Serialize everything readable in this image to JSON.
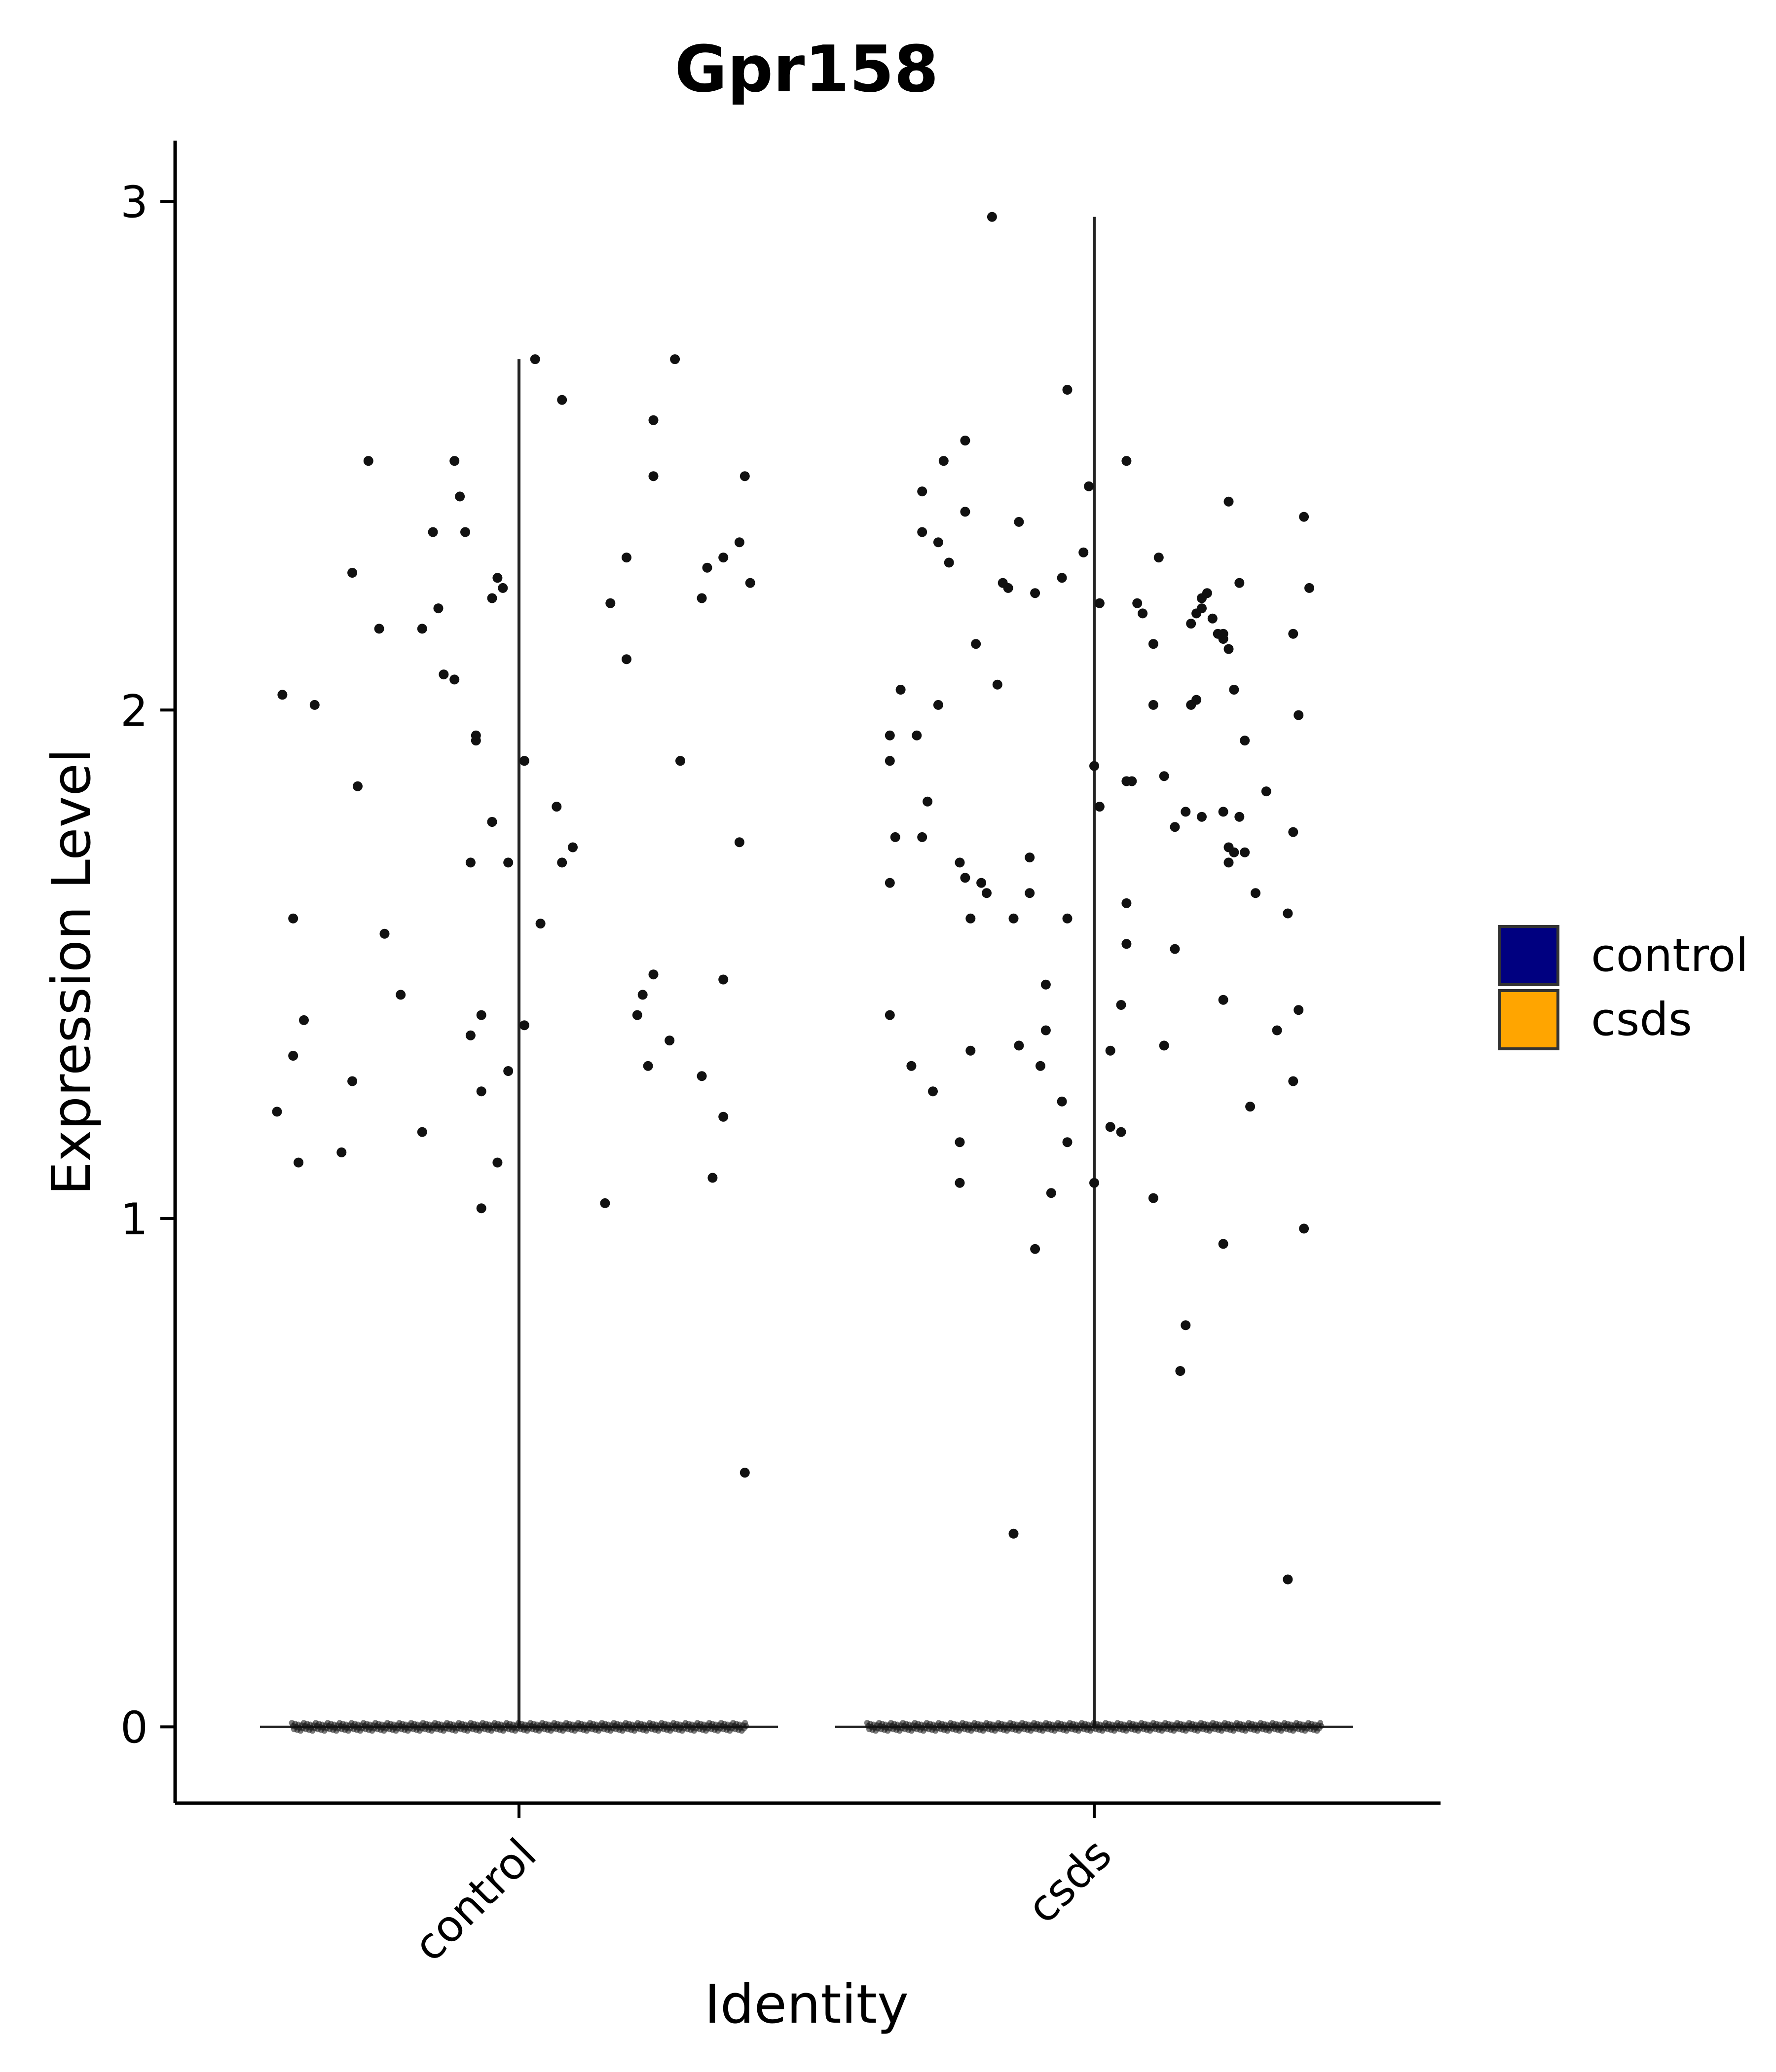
{
  "chart_data": {
    "type": "violin",
    "title": "Gpr158",
    "xlabel": "Identity",
    "ylabel": "Expression Level",
    "categories": [
      "control",
      "csds"
    ],
    "ylim": [
      -0.15,
      3.12
    ],
    "yticks": [
      0,
      1,
      2,
      3
    ],
    "grid": false,
    "legend": {
      "placement": "right",
      "entries": [
        {
          "label": "control",
          "color": "#000080"
        },
        {
          "label": "csds",
          "color": "#FFA500"
        }
      ]
    },
    "violin_max": [
      2.69,
      2.97
    ],
    "point_color": "#111111",
    "zero_counts": [
      420,
      420
    ],
    "series": [
      {
        "name": "control",
        "points": [
          [
            -0.45,
            1.21
          ],
          [
            -0.44,
            2.03
          ],
          [
            -0.42,
            1.32
          ],
          [
            -0.42,
            1.59
          ],
          [
            -0.41,
            1.11
          ],
          [
            -0.4,
            1.39
          ],
          [
            -0.38,
            2.01
          ],
          [
            -0.33,
            1.13
          ],
          [
            -0.31,
            1.27
          ],
          [
            -0.31,
            2.27
          ],
          [
            -0.3,
            1.85
          ],
          [
            -0.28,
            2.49
          ],
          [
            -0.26,
            2.16
          ],
          [
            -0.25,
            1.56
          ],
          [
            -0.22,
            1.44
          ],
          [
            -0.18,
            1.17
          ],
          [
            -0.18,
            2.16
          ],
          [
            -0.16,
            2.35
          ],
          [
            -0.15,
            2.2
          ],
          [
            -0.14,
            2.07
          ],
          [
            -0.12,
            2.49
          ],
          [
            -0.12,
            2.06
          ],
          [
            -0.11,
            2.42
          ],
          [
            -0.1,
            2.35
          ],
          [
            -0.09,
            1.36
          ],
          [
            -0.09,
            1.7
          ],
          [
            -0.08,
            1.94
          ],
          [
            -0.08,
            1.95
          ],
          [
            -0.07,
            1.25
          ],
          [
            -0.07,
            1.02
          ],
          [
            -0.07,
            1.4
          ],
          [
            -0.05,
            1.78
          ],
          [
            -0.05,
            2.22
          ],
          [
            -0.05,
            1.78
          ],
          [
            -0.04,
            2.26
          ],
          [
            -0.04,
            1.11
          ],
          [
            -0.03,
            2.24
          ],
          [
            -0.02,
            1.29
          ],
          [
            -0.02,
            1.7
          ],
          [
            0.01,
            1.9
          ],
          [
            0.01,
            1.38
          ],
          [
            0.03,
            2.69
          ],
          [
            0.04,
            1.58
          ],
          [
            0.07,
            1.81
          ],
          [
            0.08,
            2.61
          ],
          [
            0.08,
            1.7
          ],
          [
            0.1,
            1.73
          ],
          [
            0.16,
            1.03
          ],
          [
            0.17,
            2.21
          ],
          [
            0.2,
            2.1
          ],
          [
            0.2,
            2.3
          ],
          [
            0.22,
            1.4
          ],
          [
            0.23,
            1.44
          ],
          [
            0.24,
            1.3
          ],
          [
            0.25,
            1.48
          ],
          [
            0.25,
            2.57
          ],
          [
            0.25,
            2.46
          ],
          [
            0.28,
            1.35
          ],
          [
            0.29,
            2.69
          ],
          [
            0.3,
            1.9
          ],
          [
            0.34,
            2.22
          ],
          [
            0.34,
            1.28
          ],
          [
            0.35,
            2.28
          ],
          [
            0.36,
            1.08
          ],
          [
            0.38,
            2.3
          ],
          [
            0.38,
            1.2
          ],
          [
            0.38,
            1.47
          ],
          [
            0.41,
            2.33
          ],
          [
            0.41,
            1.74
          ],
          [
            0.42,
            0.5
          ],
          [
            0.42,
            2.46
          ],
          [
            0.43,
            2.25
          ]
        ]
      },
      {
        "name": "csds",
        "points": [
          [
            -0.38,
            1.4
          ],
          [
            -0.38,
            1.66
          ],
          [
            -0.38,
            1.9
          ],
          [
            -0.38,
            1.95
          ],
          [
            -0.37,
            1.75
          ],
          [
            -0.36,
            2.04
          ],
          [
            -0.34,
            1.3
          ],
          [
            -0.33,
            1.95
          ],
          [
            -0.32,
            2.43
          ],
          [
            -0.32,
            2.35
          ],
          [
            -0.32,
            1.75
          ],
          [
            -0.31,
            1.82
          ],
          [
            -0.3,
            1.25
          ],
          [
            -0.29,
            2.01
          ],
          [
            -0.29,
            2.33
          ],
          [
            -0.28,
            2.49
          ],
          [
            -0.27,
            2.29
          ],
          [
            -0.25,
            1.07
          ],
          [
            -0.25,
            1.15
          ],
          [
            -0.25,
            1.7
          ],
          [
            -0.24,
            2.53
          ],
          [
            -0.24,
            2.39
          ],
          [
            -0.24,
            1.67
          ],
          [
            -0.23,
            1.59
          ],
          [
            -0.23,
            1.33
          ],
          [
            -0.22,
            2.13
          ],
          [
            -0.21,
            1.66
          ],
          [
            -0.2,
            1.64
          ],
          [
            -0.19,
            2.97
          ],
          [
            -0.18,
            2.05
          ],
          [
            -0.17,
            2.25
          ],
          [
            -0.16,
            2.24
          ],
          [
            -0.15,
            1.59
          ],
          [
            -0.15,
            0.38
          ],
          [
            -0.14,
            1.34
          ],
          [
            -0.14,
            2.37
          ],
          [
            -0.12,
            1.71
          ],
          [
            -0.12,
            1.64
          ],
          [
            -0.11,
            0.94
          ],
          [
            -0.11,
            2.23
          ],
          [
            -0.1,
            1.3
          ],
          [
            -0.09,
            1.46
          ],
          [
            -0.09,
            1.37
          ],
          [
            -0.08,
            1.05
          ],
          [
            -0.06,
            1.23
          ],
          [
            -0.06,
            2.26
          ],
          [
            -0.05,
            2.63
          ],
          [
            -0.05,
            1.15
          ],
          [
            -0.05,
            1.59
          ],
          [
            -0.02,
            2.31
          ],
          [
            -0.01,
            2.44
          ],
          [
            0.0,
            1.07
          ],
          [
            0.0,
            1.89
          ],
          [
            0.01,
            2.21
          ],
          [
            0.01,
            1.81
          ],
          [
            0.03,
            1.18
          ],
          [
            0.03,
            1.33
          ],
          [
            0.05,
            1.42
          ],
          [
            0.05,
            1.17
          ],
          [
            0.06,
            1.62
          ],
          [
            0.06,
            1.86
          ],
          [
            0.06,
            1.54
          ],
          [
            0.06,
            2.49
          ],
          [
            0.07,
            1.86
          ],
          [
            0.08,
            2.21
          ],
          [
            0.09,
            2.19
          ],
          [
            0.11,
            2.01
          ],
          [
            0.11,
            1.04
          ],
          [
            0.11,
            2.13
          ],
          [
            0.12,
            2.3
          ],
          [
            0.13,
            1.87
          ],
          [
            0.13,
            1.34
          ],
          [
            0.15,
            1.77
          ],
          [
            0.15,
            1.53
          ],
          [
            0.16,
            0.7
          ],
          [
            0.17,
            1.8
          ],
          [
            0.17,
            0.79
          ],
          [
            0.18,
            2.17
          ],
          [
            0.18,
            2.01
          ],
          [
            0.19,
            2.19
          ],
          [
            0.19,
            2.02
          ],
          [
            0.2,
            2.2
          ],
          [
            0.2,
            2.22
          ],
          [
            0.2,
            1.79
          ],
          [
            0.21,
            2.23
          ],
          [
            0.22,
            2.18
          ],
          [
            0.23,
            2.15
          ],
          [
            0.24,
            2.15
          ],
          [
            0.24,
            1.8
          ],
          [
            0.24,
            2.14
          ],
          [
            0.24,
            0.95
          ],
          [
            0.24,
            1.43
          ],
          [
            0.25,
            2.41
          ],
          [
            0.25,
            2.12
          ],
          [
            0.25,
            1.7
          ],
          [
            0.25,
            1.73
          ],
          [
            0.26,
            1.72
          ],
          [
            0.26,
            2.04
          ],
          [
            0.27,
            1.79
          ],
          [
            0.27,
            2.25
          ],
          [
            0.28,
            1.72
          ],
          [
            0.28,
            1.94
          ],
          [
            0.29,
            1.22
          ],
          [
            0.3,
            1.64
          ],
          [
            0.32,
            1.84
          ],
          [
            0.34,
            1.37
          ],
          [
            0.36,
            1.6
          ],
          [
            0.36,
            0.29
          ],
          [
            0.37,
            1.27
          ],
          [
            0.37,
            2.15
          ],
          [
            0.37,
            1.76
          ],
          [
            0.38,
            1.99
          ],
          [
            0.38,
            1.41
          ],
          [
            0.39,
            0.98
          ],
          [
            0.39,
            2.38
          ],
          [
            0.4,
            2.24
          ]
        ]
      }
    ]
  }
}
